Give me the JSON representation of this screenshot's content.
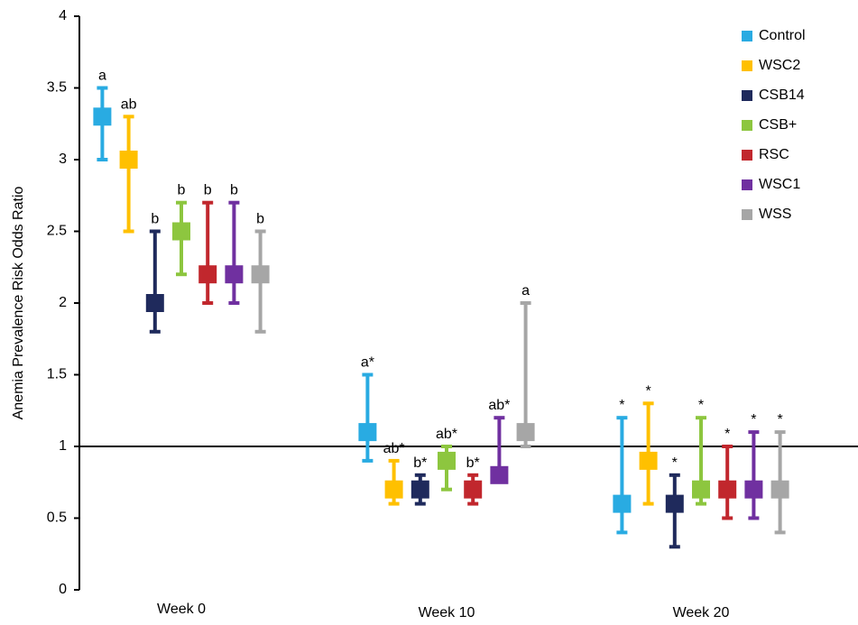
{
  "chart_data": {
    "type": "scatter",
    "title": "",
    "xlabel": "",
    "ylabel": "Anemia Prevalence Risk Odds Ratio",
    "ylim": [
      0,
      4
    ],
    "yticks": [
      "0",
      "0.5",
      "1",
      "1.5",
      "2",
      "2.5",
      "3",
      "3.5",
      "4"
    ],
    "categories": [
      "Week 0",
      "Week 10",
      "Week 20"
    ],
    "reference_line": 1,
    "grid": false,
    "legend_position": "top-right",
    "series": [
      {
        "name": "Control",
        "color": "#29ABE2",
        "values": [
          3.3,
          1.1,
          0.6
        ],
        "lower": [
          3.0,
          0.9,
          0.4
        ],
        "upper": [
          3.5,
          1.5,
          1.2
        ],
        "labels": [
          "a",
          "a*",
          "*"
        ]
      },
      {
        "name": "WSC2",
        "color": "#FFC000",
        "values": [
          3.0,
          0.7,
          0.9
        ],
        "lower": [
          2.5,
          0.6,
          0.6
        ],
        "upper": [
          3.3,
          0.9,
          1.3
        ],
        "labels": [
          "ab",
          "ab*",
          "*"
        ]
      },
      {
        "name": "CSB14",
        "color": "#1F2A5C",
        "values": [
          2.0,
          0.7,
          0.6
        ],
        "lower": [
          1.8,
          0.6,
          0.3
        ],
        "upper": [
          2.5,
          0.8,
          0.8
        ],
        "labels": [
          "b",
          "b*",
          "*"
        ]
      },
      {
        "name": "CSB+",
        "color": "#8DC63F",
        "values": [
          2.5,
          0.9,
          0.7
        ],
        "lower": [
          2.2,
          0.7,
          0.6
        ],
        "upper": [
          2.7,
          1.0,
          1.2
        ],
        "labels": [
          "b",
          "ab*",
          "*"
        ]
      },
      {
        "name": "RSC",
        "color": "#C1272D",
        "values": [
          2.2,
          0.7,
          0.7
        ],
        "lower": [
          2.0,
          0.6,
          0.5
        ],
        "upper": [
          2.7,
          0.8,
          1.0
        ],
        "labels": [
          "b",
          "b*",
          "*"
        ]
      },
      {
        "name": "WSC1",
        "color": "#7030A0",
        "values": [
          2.2,
          0.8,
          0.7
        ],
        "lower": [
          2.0,
          0.8,
          0.5
        ],
        "upper": [
          2.7,
          1.2,
          1.1
        ],
        "labels": [
          "b",
          "ab*",
          "*"
        ]
      },
      {
        "name": "WSS",
        "color": "#A6A6A6",
        "values": [
          2.2,
          1.1,
          0.7
        ],
        "lower": [
          1.8,
          1.0,
          0.4
        ],
        "upper": [
          2.5,
          2.0,
          1.1
        ],
        "labels": [
          "b",
          "a",
          "*"
        ]
      }
    ]
  }
}
